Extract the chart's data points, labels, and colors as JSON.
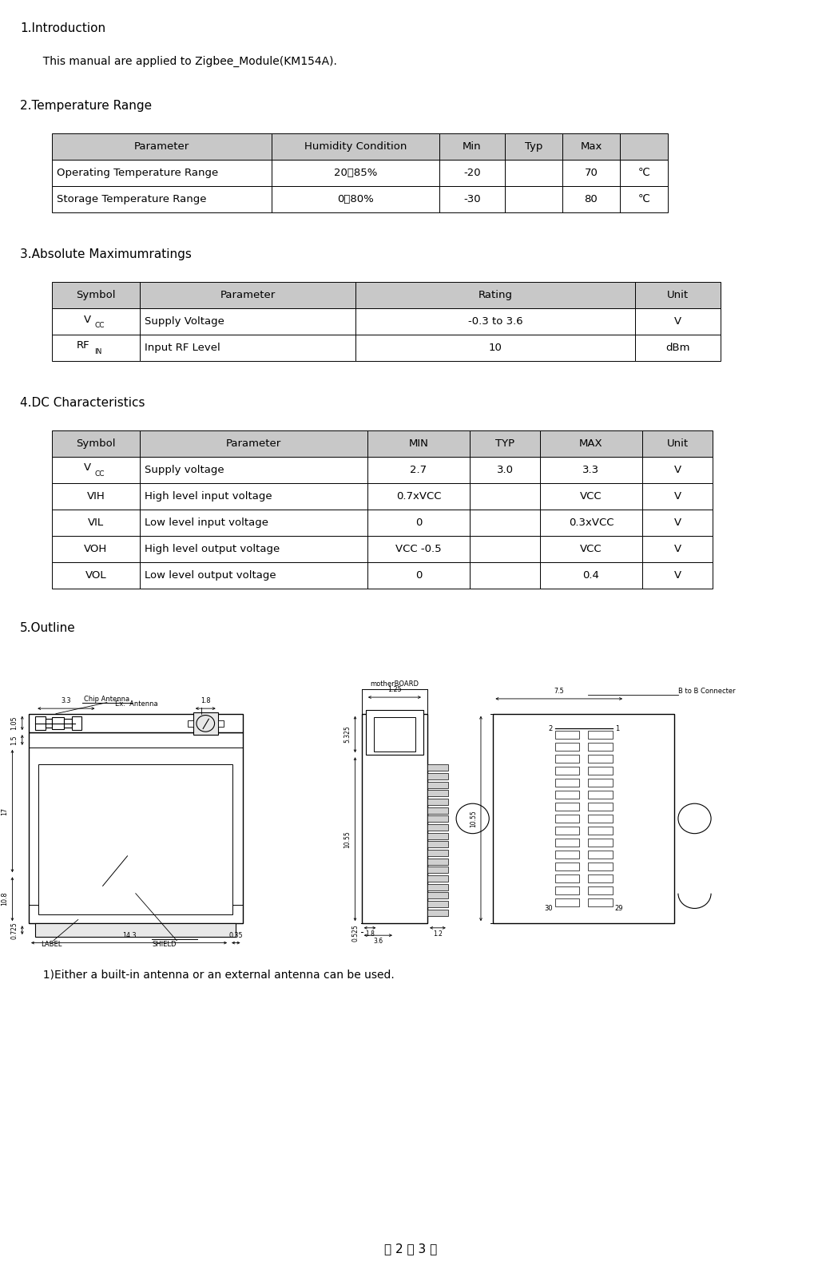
{
  "page_width": 10.29,
  "page_height": 15.99,
  "bg_color": "#ffffff",
  "header_bg": "#c8c8c8",
  "section1_title": "1.Introduction",
  "section1_body": "  This manual are applied to Zigbee_Module(KM154A).",
  "section2_title": "2.Temperature Range",
  "section3_title": "3.Absolute Maximumratings",
  "section4_title": "4.DC Characteristics",
  "section5_title": "5.Outline",
  "footer": "（ 2 ／ 3 ）",
  "note": "  1)Either a built-in antenna or an external antenna can be used.",
  "temp_headers": [
    "Parameter",
    "Humidity Condition",
    "Min",
    "Typ",
    "Max",
    ""
  ],
  "temp_rows": [
    [
      "Operating Temperature Range",
      "20～85%",
      "-20",
      "",
      "70",
      "℃"
    ],
    [
      "Storage Temperature Range",
      "0～80%",
      "-30",
      "",
      "80",
      "℃"
    ]
  ],
  "abs_headers": [
    "Symbol",
    "Parameter",
    "Rating",
    "Unit"
  ],
  "dc_headers": [
    "Symbol",
    "Parameter",
    "MIN",
    "TYP",
    "MAX",
    "Unit"
  ],
  "dc_rows": [
    [
      "VCC",
      "Supply voltage",
      "2.7",
      "3.0",
      "3.3",
      "V"
    ],
    [
      "VIH",
      "High level input voltage",
      "0.7xVCC",
      "",
      "VCC",
      "V"
    ],
    [
      "VIL",
      "Low level input voltage",
      "0",
      "",
      "0.3xVCC",
      "V"
    ],
    [
      "VOH",
      "High level output voltage",
      "VCC -0.5",
      "",
      "VCC",
      "V"
    ],
    [
      "VOL",
      "Low level output voltage",
      "0",
      "",
      "0.4",
      "V"
    ]
  ]
}
